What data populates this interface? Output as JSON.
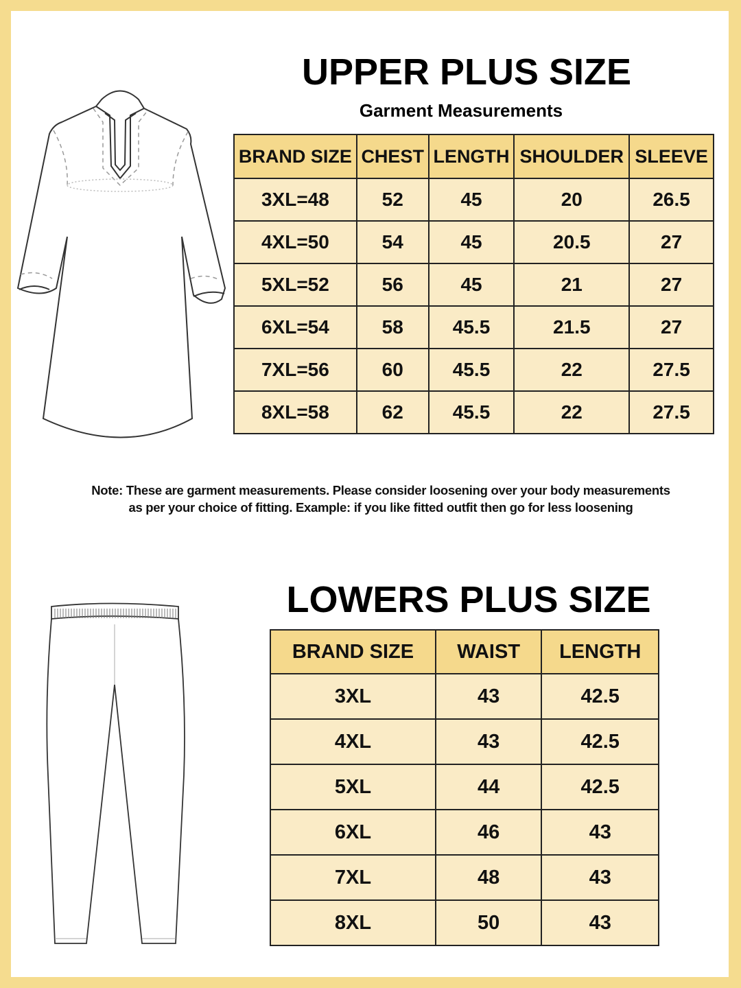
{
  "upper": {
    "title": "UPPER PLUS SIZE",
    "subtitle": "Garment Measurements",
    "headers": [
      "BRAND SIZE",
      "CHEST",
      "LENGTH",
      "SHOULDER",
      "SLEEVE"
    ],
    "rows": [
      [
        "3XL=48",
        "52",
        "45",
        "20",
        "26.5"
      ],
      [
        "4XL=50",
        "54",
        "45",
        "20.5",
        "27"
      ],
      [
        "5XL=52",
        "56",
        "45",
        "21",
        "27"
      ],
      [
        "6XL=54",
        "58",
        "45.5",
        "21.5",
        "27"
      ],
      [
        "7XL=56",
        "60",
        "45.5",
        "22",
        "27.5"
      ],
      [
        "8XL=58",
        "62",
        "45.5",
        "22",
        "27.5"
      ]
    ]
  },
  "note": {
    "line1": "Note: These are garment measurements. Please consider loosening over your body measurements",
    "line2": "as per your choice of fitting. Example: if you like fitted outfit then go for less loosening"
  },
  "lowers": {
    "title": "LOWERS PLUS SIZE",
    "headers": [
      "BRAND SIZE",
      "WAIST",
      "LENGTH"
    ],
    "rows": [
      [
        "3XL",
        "43",
        "42.5"
      ],
      [
        "4XL",
        "43",
        "42.5"
      ],
      [
        "5XL",
        "44",
        "42.5"
      ],
      [
        "6XL",
        "46",
        "43"
      ],
      [
        "7XL",
        "48",
        "43"
      ],
      [
        "8XL",
        "50",
        "43"
      ]
    ]
  },
  "colors": {
    "border": "#F5DC8F",
    "header_fill": "#F5D98C",
    "cell_fill": "#FAEBC6"
  },
  "icons": [
    "kurta-illustration",
    "pants-illustration"
  ]
}
